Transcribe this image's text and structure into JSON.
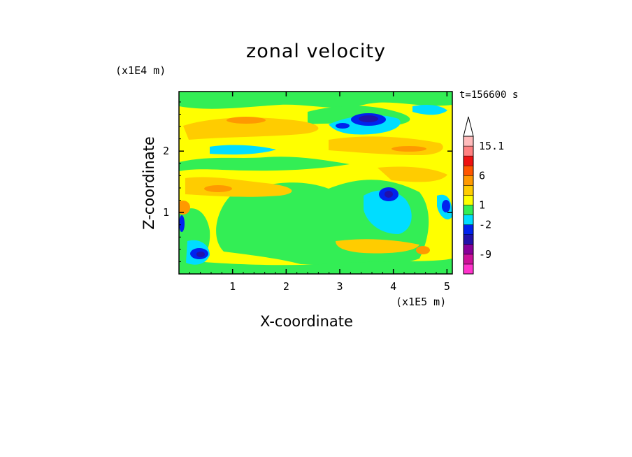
{
  "chart_data": {
    "type": "heatmap",
    "title": "zonal velocity",
    "xlabel": "X-coordinate",
    "ylabel": "Z-coordinate",
    "x_multiplier": "(x1E5 m)",
    "z_multiplier": "(x1E4 m)",
    "time_label": "t=156600 s",
    "xlim": [
      0,
      5.1
    ],
    "ylim": [
      0,
      2.97
    ],
    "x_ticks": [
      "1",
      "2",
      "3",
      "4",
      "5"
    ],
    "y_ticks": [
      "1",
      "2"
    ],
    "colorbar": {
      "labels": [
        "15.1",
        "6",
        "1",
        "-2",
        "-9"
      ],
      "bands": [
        {
          "color": "#ff33cc"
        },
        {
          "color": "#cc1199"
        },
        {
          "color": "#880099"
        },
        {
          "color": "#2211aa"
        },
        {
          "color": "#0022ee"
        },
        {
          "color": "#00ddff"
        },
        {
          "color": "#33ee55"
        },
        {
          "color": "#ffff00"
        },
        {
          "color": "#ffcc00"
        },
        {
          "color": "#ff9900"
        },
        {
          "color": "#ff5500"
        },
        {
          "color": "#ee1111"
        },
        {
          "color": "#ff8080"
        },
        {
          "color": "#ffbbbb"
        }
      ]
    },
    "colors": {
      "field_green": "#33ee55",
      "field_yellow": "#ffff00",
      "field_orange": "#ffcc00",
      "field_red": "#ff9900",
      "field_cyan": "#00ddff",
      "field_blue": "#0022ee",
      "field_navy": "#2211aa"
    }
  }
}
